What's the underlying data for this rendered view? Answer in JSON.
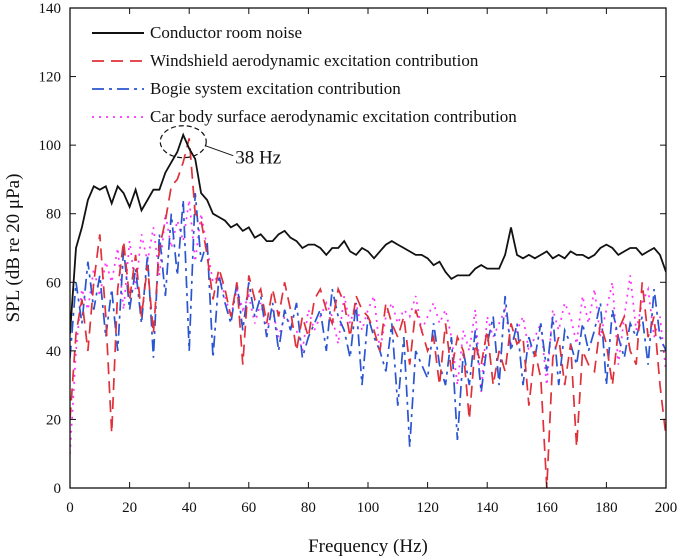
{
  "chart_data": {
    "type": "line",
    "xlabel": "Frequency (Hz)",
    "ylabel": "SPL (dB re 20 μPa)",
    "xlim": [
      0,
      200
    ],
    "ylim": [
      0,
      140
    ],
    "xticks": [
      0,
      20,
      40,
      60,
      80,
      100,
      120,
      140,
      160,
      180,
      200
    ],
    "yticks": [
      0,
      20,
      40,
      60,
      80,
      100,
      120,
      140
    ],
    "grid": false,
    "legend_position": "top-left",
    "annotation": {
      "text": "38 Hz",
      "x": 38,
      "y": 101
    },
    "series": [
      {
        "name": "Conductor room noise",
        "color": "#111111",
        "style": "solid",
        "x": [
          0,
          2,
          4,
          6,
          8,
          10,
          12,
          14,
          16,
          18,
          20,
          22,
          24,
          26,
          28,
          30,
          32,
          34,
          36,
          38,
          40,
          42,
          44,
          46,
          48,
          50,
          52,
          54,
          56,
          58,
          60,
          62,
          64,
          66,
          68,
          70,
          72,
          74,
          76,
          78,
          80,
          82,
          84,
          86,
          88,
          90,
          92,
          94,
          96,
          98,
          100,
          102,
          104,
          106,
          108,
          110,
          112,
          114,
          116,
          118,
          120,
          122,
          124,
          126,
          128,
          130,
          132,
          134,
          136,
          138,
          140,
          142,
          144,
          146,
          148,
          150,
          152,
          154,
          156,
          158,
          160,
          162,
          164,
          166,
          168,
          170,
          172,
          174,
          176,
          178,
          180,
          182,
          184,
          186,
          188,
          190,
          192,
          194,
          196,
          198,
          200
        ],
        "y": [
          45,
          70,
          76,
          84,
          88,
          87,
          88,
          83,
          88,
          86,
          82,
          87,
          81,
          84,
          87,
          87,
          92,
          95,
          98,
          103,
          99,
          96,
          86,
          84,
          80,
          79,
          78,
          76,
          77,
          75,
          76,
          73,
          74,
          72,
          72,
          74,
          75,
          73,
          72,
          70,
          71,
          71,
          70,
          68,
          70,
          70,
          72,
          69,
          68,
          70,
          69,
          67,
          69,
          71,
          72,
          71,
          70,
          69,
          68,
          68,
          67,
          65,
          66,
          63,
          61,
          62,
          62,
          62,
          64,
          65,
          64,
          64,
          64,
          68,
          76,
          68,
          67,
          68,
          67,
          68,
          69,
          67,
          68,
          67,
          69,
          68,
          68,
          67,
          68,
          70,
          71,
          70,
          68,
          69,
          70,
          70,
          68,
          69,
          70,
          68,
          63
        ]
      },
      {
        "name": "Windshield aerodynamic excitation contribution",
        "color": "#e0303a",
        "style": "dashed",
        "x": [
          0,
          2,
          4,
          6,
          8,
          10,
          12,
          14,
          16,
          18,
          20,
          22,
          24,
          26,
          28,
          30,
          32,
          34,
          36,
          38,
          40,
          42,
          44,
          46,
          48,
          50,
          52,
          54,
          56,
          58,
          60,
          62,
          64,
          66,
          68,
          70,
          72,
          74,
          76,
          78,
          80,
          82,
          84,
          86,
          88,
          90,
          92,
          94,
          96,
          98,
          100,
          102,
          104,
          106,
          108,
          110,
          112,
          114,
          116,
          118,
          120,
          122,
          124,
          126,
          128,
          130,
          132,
          134,
          136,
          138,
          140,
          142,
          144,
          146,
          148,
          150,
          152,
          154,
          156,
          158,
          160,
          162,
          164,
          166,
          168,
          170,
          172,
          174,
          176,
          178,
          180,
          182,
          184,
          186,
          188,
          190,
          192,
          194,
          196,
          198,
          200
        ],
        "y": [
          20,
          45,
          55,
          40,
          60,
          74,
          50,
          16,
          58,
          72,
          55,
          68,
          50,
          65,
          45,
          70,
          78,
          88,
          90,
          95,
          102,
          80,
          78,
          68,
          55,
          64,
          58,
          50,
          60,
          36,
          62,
          55,
          58,
          48,
          58,
          50,
          60,
          52,
          40,
          50,
          44,
          55,
          58,
          52,
          48,
          58,
          54,
          44,
          56,
          52,
          50,
          46,
          40,
          54,
          48,
          44,
          50,
          36,
          52,
          46,
          40,
          44,
          30,
          48,
          34,
          44,
          40,
          20,
          42,
          36,
          46,
          30,
          40,
          34,
          48,
          42,
          44,
          24,
          40,
          32,
          0,
          38,
          44,
          30,
          42,
          12,
          40,
          36,
          34,
          48,
          42,
          30,
          46,
          50,
          40,
          36,
          60,
          44,
          50,
          30,
          15
        ]
      },
      {
        "name": "Bogie system excitation contribution",
        "color": "#2a55d0",
        "style": "dashdot",
        "x": [
          0,
          2,
          4,
          6,
          8,
          10,
          12,
          14,
          16,
          18,
          20,
          22,
          24,
          26,
          28,
          30,
          32,
          34,
          36,
          38,
          40,
          42,
          44,
          46,
          48,
          50,
          52,
          54,
          56,
          58,
          60,
          62,
          64,
          66,
          68,
          70,
          72,
          74,
          76,
          78,
          80,
          82,
          84,
          86,
          88,
          90,
          92,
          94,
          96,
          98,
          100,
          102,
          104,
          106,
          108,
          110,
          112,
          114,
          116,
          118,
          120,
          122,
          124,
          126,
          128,
          130,
          132,
          134,
          136,
          138,
          140,
          142,
          144,
          146,
          148,
          150,
          152,
          154,
          156,
          158,
          160,
          162,
          164,
          166,
          168,
          170,
          172,
          174,
          176,
          178,
          180,
          182,
          184,
          186,
          188,
          190,
          192,
          194,
          196,
          198,
          200
        ],
        "y": [
          38,
          60,
          48,
          66,
          52,
          62,
          44,
          58,
          40,
          70,
          52,
          64,
          48,
          68,
          38,
          74,
          56,
          80,
          62,
          84,
          40,
          86,
          66,
          72,
          38,
          62,
          54,
          48,
          60,
          46,
          60,
          50,
          56,
          44,
          54,
          40,
          52,
          46,
          54,
          38,
          44,
          48,
          52,
          40,
          58,
          50,
          46,
          38,
          54,
          30,
          50,
          44,
          40,
          34,
          48,
          24,
          44,
          12,
          40,
          36,
          32,
          48,
          36,
          30,
          44,
          14,
          40,
          30,
          46,
          28,
          42,
          50,
          30,
          56,
          40,
          48,
          30,
          44,
          38,
          48,
          34,
          50,
          30,
          46,
          42,
          36,
          48,
          40,
          46,
          54,
          30,
          52,
          44,
          38,
          48,
          44,
          50,
          36,
          58,
          44,
          40
        ]
      },
      {
        "name": "Car body surface aerodynamic excitation contribution",
        "color": "#ff30ff",
        "style": "dotted",
        "x": [
          0,
          2,
          4,
          6,
          8,
          10,
          12,
          14,
          16,
          18,
          20,
          22,
          24,
          26,
          28,
          30,
          32,
          34,
          36,
          38,
          40,
          42,
          44,
          46,
          48,
          50,
          52,
          54,
          56,
          58,
          60,
          62,
          64,
          66,
          68,
          70,
          72,
          74,
          76,
          78,
          80,
          82,
          84,
          86,
          88,
          90,
          92,
          94,
          96,
          98,
          100,
          102,
          104,
          106,
          108,
          110,
          112,
          114,
          116,
          118,
          120,
          122,
          124,
          126,
          128,
          130,
          132,
          134,
          136,
          138,
          140,
          142,
          144,
          146,
          148,
          150,
          152,
          154,
          156,
          158,
          160,
          162,
          164,
          166,
          168,
          170,
          172,
          174,
          176,
          178,
          180,
          182,
          184,
          186,
          188,
          190,
          192,
          194,
          196,
          198,
          200
        ],
        "y": [
          10,
          40,
          58,
          52,
          64,
          56,
          66,
          60,
          70,
          52,
          72,
          58,
          74,
          66,
          76,
          62,
          80,
          70,
          78,
          72,
          84,
          66,
          80,
          70,
          60,
          62,
          56,
          50,
          58,
          52,
          56,
          48,
          54,
          46,
          52,
          44,
          50,
          48,
          46,
          40,
          52,
          46,
          50,
          54,
          50,
          42,
          56,
          48,
          54,
          46,
          52,
          56,
          40,
          50,
          54,
          48,
          52,
          50,
          56,
          46,
          50,
          54,
          48,
          52,
          44,
          30,
          46,
          40,
          52,
          28,
          50,
          44,
          48,
          52,
          42,
          46,
          50,
          40,
          44,
          48,
          30,
          52,
          46,
          54,
          50,
          42,
          56,
          48,
          58,
          44,
          52,
          60,
          36,
          50,
          62,
          46,
          54,
          58,
          44,
          50,
          34
        ]
      }
    ]
  }
}
